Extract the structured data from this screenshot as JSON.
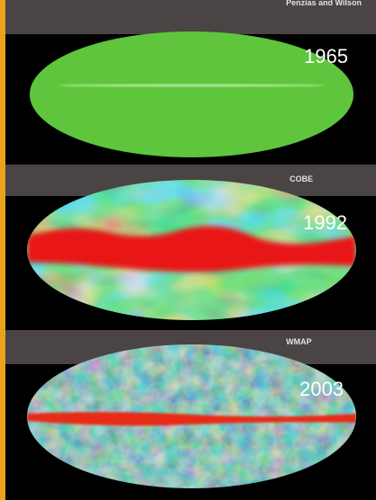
{
  "panels": [
    {
      "label": "Penzias and Wilson",
      "year": "1965"
    },
    {
      "label": "COBE",
      "year": "1992"
    },
    {
      "label": "WMAP",
      "year": "2003"
    }
  ]
}
